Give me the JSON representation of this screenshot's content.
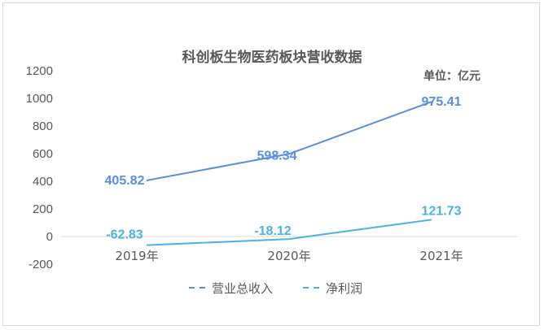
{
  "chart_data": {
    "type": "line",
    "title": "科创板生物医药板块营收数据",
    "unit_label": "单位：亿元",
    "categories": [
      "2019年",
      "2020年",
      "2021年"
    ],
    "ylim": [
      -200,
      1200
    ],
    "yticks": [
      1200,
      1000,
      800,
      600,
      400,
      200,
      0,
      -200
    ],
    "grid": false,
    "legend_position": "bottom",
    "series": [
      {
        "name": "营业总收入",
        "values": [
          405.82,
          598.34,
          975.41
        ],
        "labels": [
          "405.82",
          "598.34",
          "975.41"
        ],
        "color": "#5b8ee0"
      },
      {
        "name": "净利润",
        "values": [
          -62.83,
          -18.12,
          121.73
        ],
        "labels": [
          "-62.83",
          "-18.12",
          "121.73"
        ],
        "color": "#4cb2e2"
      }
    ]
  }
}
